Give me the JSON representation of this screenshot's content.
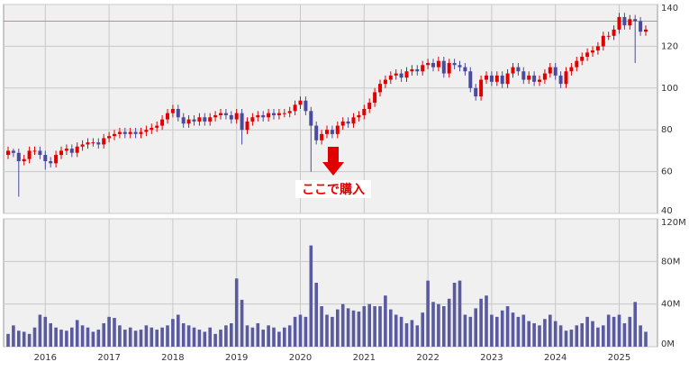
{
  "chart_data": [
    {
      "type": "candlestick",
      "up_color": "#e00000",
      "down_color": "#4a4aa0",
      "hline": 132,
      "hline_color": "#e08080",
      "annotation": "ここで購入",
      "ylim": [
        40,
        140
      ],
      "yticks": [
        40,
        60,
        80,
        100,
        120,
        140
      ],
      "grid": true,
      "categories": [
        null,
        null,
        null,
        null,
        null,
        null,
        null,
        "2016",
        null,
        null,
        null,
        null,
        null,
        null,
        null,
        null,
        null,
        null,
        null,
        "2017",
        null,
        null,
        null,
        null,
        null,
        null,
        null,
        null,
        null,
        null,
        null,
        "2018",
        null,
        null,
        null,
        null,
        null,
        null,
        null,
        null,
        null,
        null,
        null,
        "2019",
        null,
        null,
        null,
        null,
        null,
        null,
        null,
        null,
        null,
        null,
        null,
        "2020",
        null,
        null,
        null,
        null,
        null,
        null,
        null,
        null,
        null,
        null,
        null,
        "2021",
        null,
        null,
        null,
        null,
        null,
        null,
        null,
        null,
        null,
        null,
        null,
        "2022",
        null,
        null,
        null,
        null,
        null,
        null,
        null,
        null,
        null,
        null,
        null,
        "2023",
        null,
        null,
        null,
        null,
        null,
        null,
        null,
        null,
        null,
        null,
        null,
        "2024",
        null,
        null,
        null,
        null,
        null,
        null,
        null,
        null,
        null,
        null,
        null,
        "2025",
        null,
        null,
        null,
        null,
        null
      ],
      "open": [
        68,
        70,
        69,
        65,
        66,
        70,
        70,
        68,
        65,
        64,
        68,
        70,
        71,
        69,
        72,
        73,
        74,
        74,
        73,
        76,
        77,
        78,
        79,
        78,
        79,
        78,
        79,
        80,
        81,
        82,
        85,
        88,
        90,
        86,
        83,
        85,
        84,
        86,
        84,
        86,
        87,
        88,
        87,
        85,
        88,
        80,
        84,
        86,
        87,
        86,
        88,
        87,
        88,
        88,
        89,
        92,
        94,
        89,
        82,
        75,
        78,
        80,
        78,
        82,
        84,
        83,
        86,
        87,
        90,
        93,
        98,
        102,
        104,
        106,
        107,
        105,
        108,
        109,
        108,
        111,
        112,
        110,
        113,
        107,
        112,
        111,
        110,
        108,
        100,
        96,
        104,
        106,
        103,
        106,
        102,
        107,
        110,
        108,
        104,
        106,
        103,
        104,
        107,
        110,
        106,
        102,
        108,
        110,
        113,
        115,
        117,
        118,
        120,
        125,
        125,
        128,
        134,
        130,
        133,
        132,
        127
      ],
      "high": [
        72,
        71,
        71,
        68,
        72,
        72,
        72,
        70,
        67,
        70,
        72,
        73,
        73,
        74,
        75,
        76,
        76,
        76,
        78,
        79,
        80,
        81,
        81,
        81,
        81,
        81,
        82,
        83,
        84,
        87,
        90,
        92,
        92,
        88,
        87,
        87,
        88,
        88,
        88,
        89,
        90,
        90,
        89,
        90,
        90,
        86,
        88,
        89,
        89,
        90,
        90,
        90,
        90,
        91,
        94,
        96,
        96,
        91,
        84,
        80,
        82,
        82,
        84,
        86,
        86,
        88,
        89,
        92,
        95,
        100,
        104,
        106,
        108,
        109,
        109,
        110,
        111,
        111,
        113,
        114,
        114,
        115,
        115,
        114,
        114,
        113,
        112,
        110,
        102,
        106,
        108,
        108,
        108,
        108,
        109,
        112,
        112,
        110,
        108,
        108,
        106,
        109,
        112,
        112,
        108,
        110,
        112,
        115,
        117,
        119,
        120,
        122,
        127,
        127,
        130,
        136,
        136,
        135,
        135,
        134,
        130
      ],
      "low": [
        66,
        67,
        48,
        63,
        64,
        68,
        66,
        61,
        62,
        62,
        66,
        68,
        67,
        67,
        70,
        71,
        72,
        71,
        71,
        74,
        75,
        76,
        76,
        76,
        76,
        76,
        77,
        78,
        79,
        80,
        83,
        86,
        84,
        81,
        81,
        82,
        82,
        82,
        82,
        84,
        85,
        85,
        83,
        83,
        73,
        78,
        82,
        84,
        84,
        84,
        85,
        85,
        86,
        86,
        87,
        90,
        87,
        60,
        73,
        73,
        76,
        76,
        76,
        80,
        81,
        81,
        84,
        85,
        88,
        91,
        96,
        100,
        102,
        104,
        103,
        103,
        106,
        106,
        106,
        109,
        108,
        108,
        105,
        105,
        109,
        108,
        106,
        98,
        94,
        94,
        102,
        101,
        101,
        100,
        100,
        105,
        106,
        102,
        102,
        101,
        101,
        102,
        105,
        104,
        100,
        100,
        106,
        108,
        111,
        113,
        115,
        116,
        118,
        123,
        123,
        126,
        128,
        128,
        112,
        125,
        125
      ],
      "close": [
        70,
        69,
        65,
        66,
        70,
        70,
        68,
        65,
        64,
        68,
        70,
        71,
        69,
        72,
        73,
        74,
        74,
        73,
        76,
        77,
        78,
        79,
        78,
        79,
        78,
        79,
        80,
        81,
        82,
        85,
        88,
        90,
        86,
        83,
        85,
        84,
        86,
        84,
        86,
        87,
        88,
        87,
        85,
        88,
        80,
        84,
        86,
        87,
        86,
        88,
        87,
        88,
        88,
        89,
        92,
        94,
        89,
        82,
        75,
        78,
        80,
        78,
        82,
        84,
        83,
        86,
        87,
        90,
        93,
        98,
        102,
        104,
        106,
        107,
        105,
        108,
        109,
        108,
        111,
        112,
        110,
        113,
        107,
        112,
        111,
        110,
        108,
        100,
        96,
        104,
        106,
        103,
        106,
        102,
        107,
        110,
        108,
        104,
        106,
        103,
        104,
        107,
        110,
        106,
        102,
        108,
        110,
        113,
        115,
        117,
        118,
        120,
        125,
        125,
        128,
        134,
        130,
        133,
        132,
        127,
        128
      ]
    },
    {
      "type": "bar",
      "color": "#5a5aa0",
      "ylim": [
        0,
        120
      ],
      "yticks": [
        {
          "value": 0,
          "label": "0M"
        },
        {
          "value": 40,
          "label": "40M"
        },
        {
          "value": 80,
          "label": "80M"
        },
        {
          "value": 120,
          "label": "120M"
        }
      ],
      "grid": true,
      "categories": [
        null,
        null,
        null,
        null,
        null,
        null,
        null,
        "2016",
        null,
        null,
        null,
        null,
        null,
        null,
        null,
        null,
        null,
        null,
        null,
        "2017",
        null,
        null,
        null,
        null,
        null,
        null,
        null,
        null,
        null,
        null,
        null,
        "2018",
        null,
        null,
        null,
        null,
        null,
        null,
        null,
        null,
        null,
        null,
        null,
        "2019",
        null,
        null,
        null,
        null,
        null,
        null,
        null,
        null,
        null,
        null,
        null,
        "2020",
        null,
        null,
        null,
        null,
        null,
        null,
        null,
        null,
        null,
        null,
        null,
        "2021",
        null,
        null,
        null,
        null,
        null,
        null,
        null,
        null,
        null,
        null,
        null,
        "2022",
        null,
        null,
        null,
        null,
        null,
        null,
        null,
        null,
        null,
        null,
        null,
        "2023",
        null,
        null,
        null,
        null,
        null,
        null,
        null,
        null,
        null,
        null,
        null,
        "2024",
        null,
        null,
        null,
        null,
        null,
        null,
        null,
        null,
        null,
        null,
        null,
        "2025",
        null,
        null,
        null,
        null,
        null
      ],
      "values": [
        12,
        20,
        15,
        14,
        12,
        18,
        30,
        28,
        22,
        18,
        16,
        15,
        18,
        25,
        20,
        18,
        14,
        16,
        22,
        28,
        27,
        20,
        16,
        18,
        15,
        16,
        20,
        18,
        16,
        18,
        20,
        26,
        30,
        22,
        20,
        18,
        16,
        14,
        18,
        12,
        16,
        20,
        22,
        64,
        44,
        20,
        18,
        22,
        16,
        20,
        18,
        14,
        18,
        20,
        28,
        30,
        28,
        95,
        60,
        38,
        30,
        28,
        35,
        40,
        36,
        34,
        33,
        38,
        40,
        38,
        38,
        48,
        35,
        30,
        28,
        22,
        25,
        20,
        32,
        62,
        42,
        40,
        38,
        45,
        60,
        62,
        30,
        28,
        36,
        45,
        48,
        30,
        28,
        34,
        38,
        32,
        28,
        30,
        24,
        22,
        20,
        26,
        30,
        24,
        20,
        15,
        16,
        20,
        22,
        28,
        24,
        18,
        20,
        30,
        28,
        30,
        22,
        28,
        42,
        20,
        14
      ]
    }
  ]
}
